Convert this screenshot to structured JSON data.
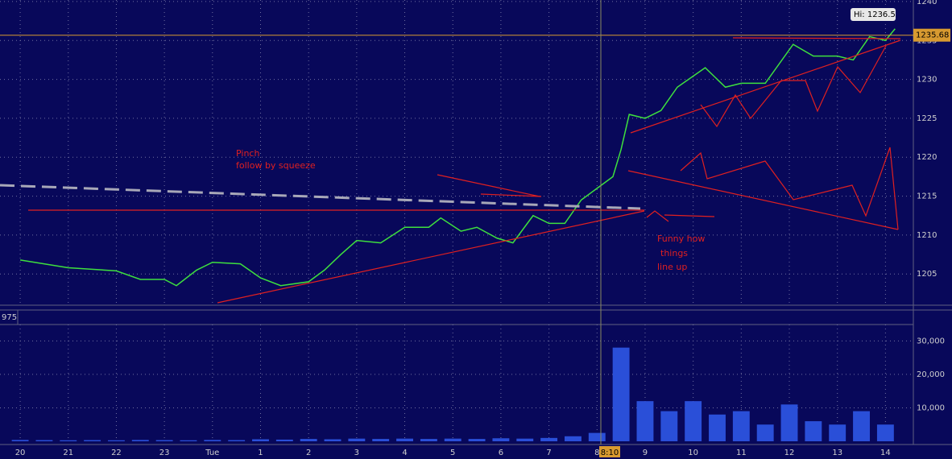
{
  "chart_data": [
    {
      "type": "line",
      "name": "price",
      "x": [
        0,
        1,
        2,
        2.5,
        3,
        3.25,
        3.67,
        4,
        4.58,
        5,
        5.42,
        6,
        6.33,
        6.67,
        7,
        7.5,
        8,
        8.5,
        8.75,
        9.17,
        9.5,
        9.92,
        10.25,
        10.67,
        11,
        11.33,
        11.67,
        12,
        12.33,
        12.5,
        12.67,
        13,
        13.33,
        13.67,
        14.25,
        14.67,
        15,
        15.5,
        16.08,
        16.5,
        17,
        17.33,
        17.67,
        18,
        18.2
      ],
      "values": [
        1206.8,
        1205.8,
        1205.4,
        1204.3,
        1204.3,
        1203.5,
        1205.5,
        1206.5,
        1206.3,
        1204.5,
        1203.5,
        1204,
        1205.5,
        1207.5,
        1209.3,
        1209,
        1211,
        1211,
        1212.2,
        1210.5,
        1211,
        1209.6,
        1209,
        1212.5,
        1211.5,
        1211.5,
        1214.5,
        1216,
        1217.5,
        1221,
        1225.5,
        1225,
        1226,
        1229,
        1231.5,
        1229,
        1229.5,
        1229.5,
        1234.5,
        1233,
        1233,
        1232.5,
        1235.5,
        1235,
        1236.5
      ],
      "color": "#3ee03e",
      "xlim": [
        -0.42,
        18.58
      ],
      "ylim": [
        1201.3,
        1240.2
      ],
      "xticks": [
        {
          "value": 0,
          "label": "20"
        },
        {
          "value": 1,
          "label": "21"
        },
        {
          "value": 2,
          "label": "22"
        },
        {
          "value": 3,
          "label": "23"
        },
        {
          "value": 4,
          "label": "Tue"
        },
        {
          "value": 5,
          "label": "1"
        },
        {
          "value": 6,
          "label": "2"
        },
        {
          "value": 7,
          "label": "3"
        },
        {
          "value": 8,
          "label": "4"
        },
        {
          "value": 9,
          "label": "5"
        },
        {
          "value": 10,
          "label": "6"
        },
        {
          "value": 11,
          "label": "7"
        },
        {
          "value": 12,
          "label": "8"
        },
        {
          "value": 13,
          "label": "9"
        },
        {
          "value": 14,
          "label": "10"
        },
        {
          "value": 15,
          "label": "11"
        },
        {
          "value": 16,
          "label": "12"
        },
        {
          "value": 17,
          "label": "13"
        },
        {
          "value": 18,
          "label": "14"
        }
      ],
      "yticks": [
        1205,
        1210,
        1215,
        1220,
        1225,
        1230,
        1235,
        1240
      ],
      "grid": true,
      "last_price": 1235.68,
      "high_label": "Hi: 1236.5",
      "crosshair_label": "8:10",
      "annotations": [
        "Pinch",
        "follow by squeeze",
        "Funny how",
        "things",
        "line up"
      ]
    },
    {
      "type": "bar",
      "name": "volume",
      "x": [
        0,
        0.5,
        1,
        1.5,
        2,
        2.5,
        3,
        3.5,
        4,
        4.5,
        5,
        5.5,
        6,
        6.5,
        7,
        7.5,
        8,
        8.5,
        9,
        9.5,
        10,
        10.5,
        11,
        11.5,
        12,
        12.5,
        13,
        13.5,
        14,
        14.5,
        15,
        15.5,
        16,
        16.5,
        17,
        17.5,
        18
      ],
      "values": [
        400,
        350,
        300,
        350,
        300,
        400,
        350,
        300,
        400,
        350,
        600,
        500,
        700,
        600,
        800,
        700,
        800,
        700,
        800,
        700,
        900,
        800,
        1000,
        1500,
        2500,
        28000,
        12000,
        9000,
        12000,
        8000,
        9000,
        5000,
        11000,
        6000,
        5000,
        9000,
        5000
      ],
      "color": "#2a4fd8",
      "ylim": [
        0,
        34900
      ],
      "yticks": [
        {
          "value": 10000,
          "label": "10,000"
        },
        {
          "value": 20000,
          "label": "20,000"
        },
        {
          "value": 30000,
          "label": "30,000"
        }
      ],
      "header_label": "975"
    }
  ]
}
